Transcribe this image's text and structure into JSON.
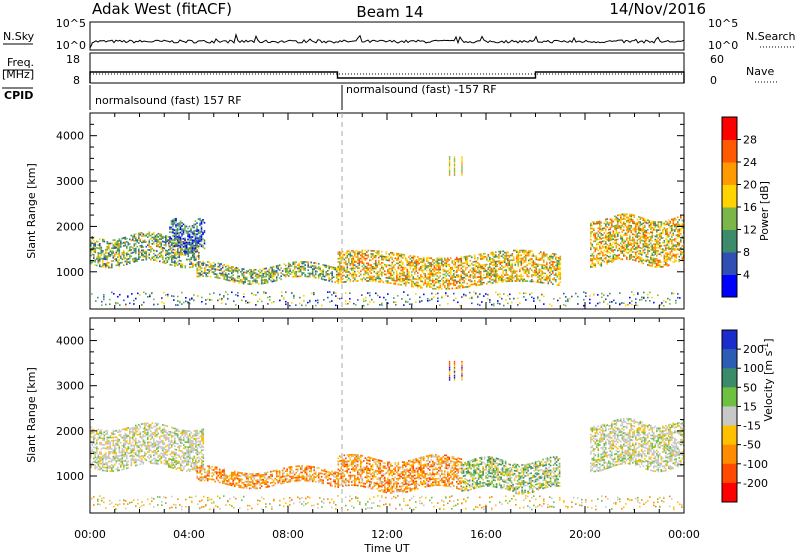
{
  "header": {
    "title": "Adak West (fitACF)",
    "beam": "Beam 14",
    "date": "14/Nov/2016"
  },
  "panels": {
    "nsky_label": "N.Sky",
    "nsearch_label": "N.Search",
    "nsky_ticks": [
      "10^5",
      "10^0"
    ],
    "nsearch_ticks": [
      "10^5",
      "10^0"
    ],
    "freq_label_1": "Freq.",
    "freq_label_2": "[MHz]",
    "freq_ticks": [
      "18",
      "8"
    ],
    "nave_label": "Nave",
    "nave_ticks": [
      "60",
      "0"
    ],
    "cpid_label": "CPID",
    "cpid_segments": [
      {
        "label": "normalsound (fast) 157 RF",
        "start_hour": 0,
        "end_hour": 10
      },
      {
        "label": "normalsound (fast) -157 RF",
        "start_hour": 10,
        "end_hour": 24
      }
    ],
    "freq_series": [
      {
        "start_hour": 0,
        "end_hour": 10,
        "freq_mhz": 12
      },
      {
        "start_hour": 10,
        "end_hour": 18,
        "freq_mhz": 10
      },
      {
        "start_hour": 18,
        "end_hour": 24,
        "freq_mhz": 12
      }
    ]
  },
  "chart_data": [
    {
      "type": "heatmap",
      "panel": "power",
      "ylabel": "Slant Range [km]",
      "xlabel": "",
      "x_ticks": [
        "00:00",
        "04:00",
        "08:00",
        "12:00",
        "16:00",
        "20:00",
        "00:00"
      ],
      "y_ticks": [
        "1000",
        "2000",
        "3000",
        "4000"
      ],
      "xlim": [
        0,
        24
      ],
      "ylim": [
        180,
        4500
      ],
      "colorbar": {
        "label": "Power [dB]",
        "ticks": [
          "4",
          "8",
          "12",
          "16",
          "20",
          "24",
          "28"
        ],
        "range": [
          0,
          30
        ],
        "colors": [
          "#0000ff",
          "#2f4fb5",
          "#3c8c6c",
          "#7ab648",
          "#ffd400",
          "#ff9b00",
          "#ff5a00",
          "#ff0000"
        ]
      },
      "regions": [
        {
          "t0": 0.0,
          "t1": 4.4,
          "r_lo": 1200,
          "r_hi": 1800,
          "level": "mixed"
        },
        {
          "t0": 3.2,
          "t1": 4.6,
          "r_lo": 1500,
          "r_hi": 2100,
          "level": "low"
        },
        {
          "t0": 4.3,
          "t1": 10.0,
          "r_lo": 820,
          "r_hi": 1150,
          "level": "mixed"
        },
        {
          "t0": 10.0,
          "t1": 19.0,
          "r_lo": 700,
          "r_hi": 1400,
          "level": "high"
        },
        {
          "t0": 20.2,
          "t1": 24.0,
          "r_lo": 1200,
          "r_hi": 2200,
          "level": "high"
        }
      ]
    },
    {
      "type": "heatmap",
      "panel": "velocity",
      "ylabel": "Slant Range [km]",
      "xlabel": "Time UT",
      "x_ticks": [
        "00:00",
        "04:00",
        "08:00",
        "12:00",
        "16:00",
        "20:00",
        "00:00"
      ],
      "y_ticks": [
        "1000",
        "2000",
        "3000",
        "4000"
      ],
      "xlim": [
        0,
        24
      ],
      "ylim": [
        180,
        4500
      ],
      "colorbar": {
        "label": "Velocity [m s",
        "label_sup": "-1",
        "label_end": "]",
        "ticks": [
          "200",
          "100",
          "50",
          "15",
          "-15",
          "-50",
          "-100",
          "-200"
        ],
        "colors": [
          "#1a2ccc",
          "#2b5db5",
          "#3b8a6a",
          "#6dc040",
          "#c8c8c8",
          "#ffc000",
          "#ff8c00",
          "#ff4a00",
          "#ff0000"
        ]
      },
      "regions": [
        {
          "t0": 0.0,
          "t1": 4.6,
          "r_lo": 1200,
          "r_hi": 2100,
          "level": "grey"
        },
        {
          "t0": 4.3,
          "t1": 10.0,
          "r_lo": 820,
          "r_hi": 1150,
          "level": "orange"
        },
        {
          "t0": 10.0,
          "t1": 15.0,
          "r_lo": 700,
          "r_hi": 1400,
          "level": "orange"
        },
        {
          "t0": 15.0,
          "t1": 19.0,
          "r_lo": 700,
          "r_hi": 1350,
          "level": "green"
        },
        {
          "t0": 20.2,
          "t1": 24.0,
          "r_lo": 1200,
          "r_hi": 2200,
          "level": "grey"
        }
      ]
    }
  ]
}
